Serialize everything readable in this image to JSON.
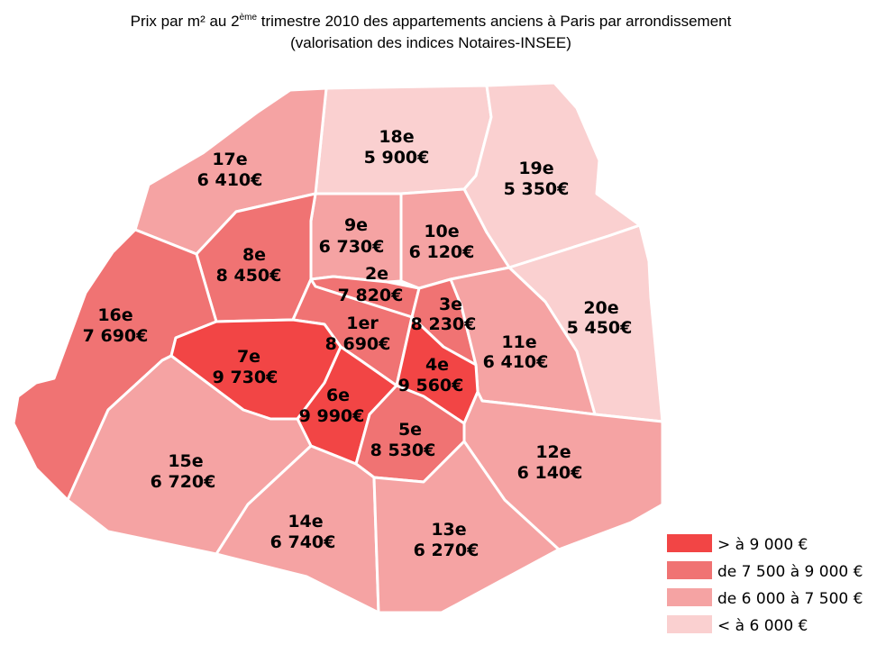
{
  "title": {
    "line1_a": "Prix par m² au 2",
    "line1_sup": "ème",
    "line1_b": " trimestre 2010 des appartements anciens à Paris par arrondissement",
    "line2": "(valorisation des indices Notaires-INSEE)"
  },
  "legend": [
    {
      "label": "> à 9 000 €",
      "class": "gt9000",
      "color": "#f24545"
    },
    {
      "label": "de 7 500 à 9 000 €",
      "class": "7500-9000",
      "color": "#f07373"
    },
    {
      "label": "de 6 000 à 7 500 €",
      "class": "6000-7500",
      "color": "#f5a3a3"
    },
    {
      "label": "< à 6 000 €",
      "class": "lt6000",
      "color": "#fad0d0"
    }
  ],
  "arrondissements": [
    {
      "name": "1er",
      "price": "8 690€",
      "class": "7500-9000"
    },
    {
      "name": "2e",
      "price": "7 820€",
      "class": "7500-9000"
    },
    {
      "name": "3e",
      "price": "8 230€",
      "class": "7500-9000"
    },
    {
      "name": "4e",
      "price": "9 560€",
      "class": "gt9000"
    },
    {
      "name": "5e",
      "price": "8 530€",
      "class": "7500-9000"
    },
    {
      "name": "6e",
      "price": "9 990€",
      "class": "gt9000"
    },
    {
      "name": "7e",
      "price": "9 730€",
      "class": "gt9000"
    },
    {
      "name": "8e",
      "price": "8 450€",
      "class": "7500-9000"
    },
    {
      "name": "9e",
      "price": "6 730€",
      "class": "6000-7500"
    },
    {
      "name": "10e",
      "price": "6 120€",
      "class": "6000-7500"
    },
    {
      "name": "11e",
      "price": "6 410€",
      "class": "6000-7500"
    },
    {
      "name": "12e",
      "price": "6 140€",
      "class": "6000-7500"
    },
    {
      "name": "13e",
      "price": "6 270€",
      "class": "6000-7500"
    },
    {
      "name": "14e",
      "price": "6 740€",
      "class": "6000-7500"
    },
    {
      "name": "15e",
      "price": "6 720€",
      "class": "6000-7500"
    },
    {
      "name": "16e",
      "price": "7 690€",
      "class": "7500-9000"
    },
    {
      "name": "17e",
      "price": "6 410€",
      "class": "6000-7500"
    },
    {
      "name": "18e",
      "price": "5 900€",
      "class": "lt6000"
    },
    {
      "name": "19e",
      "price": "5 350€",
      "class": "lt6000"
    },
    {
      "name": "20e",
      "price": "5 450€",
      "class": "lt6000"
    }
  ]
}
